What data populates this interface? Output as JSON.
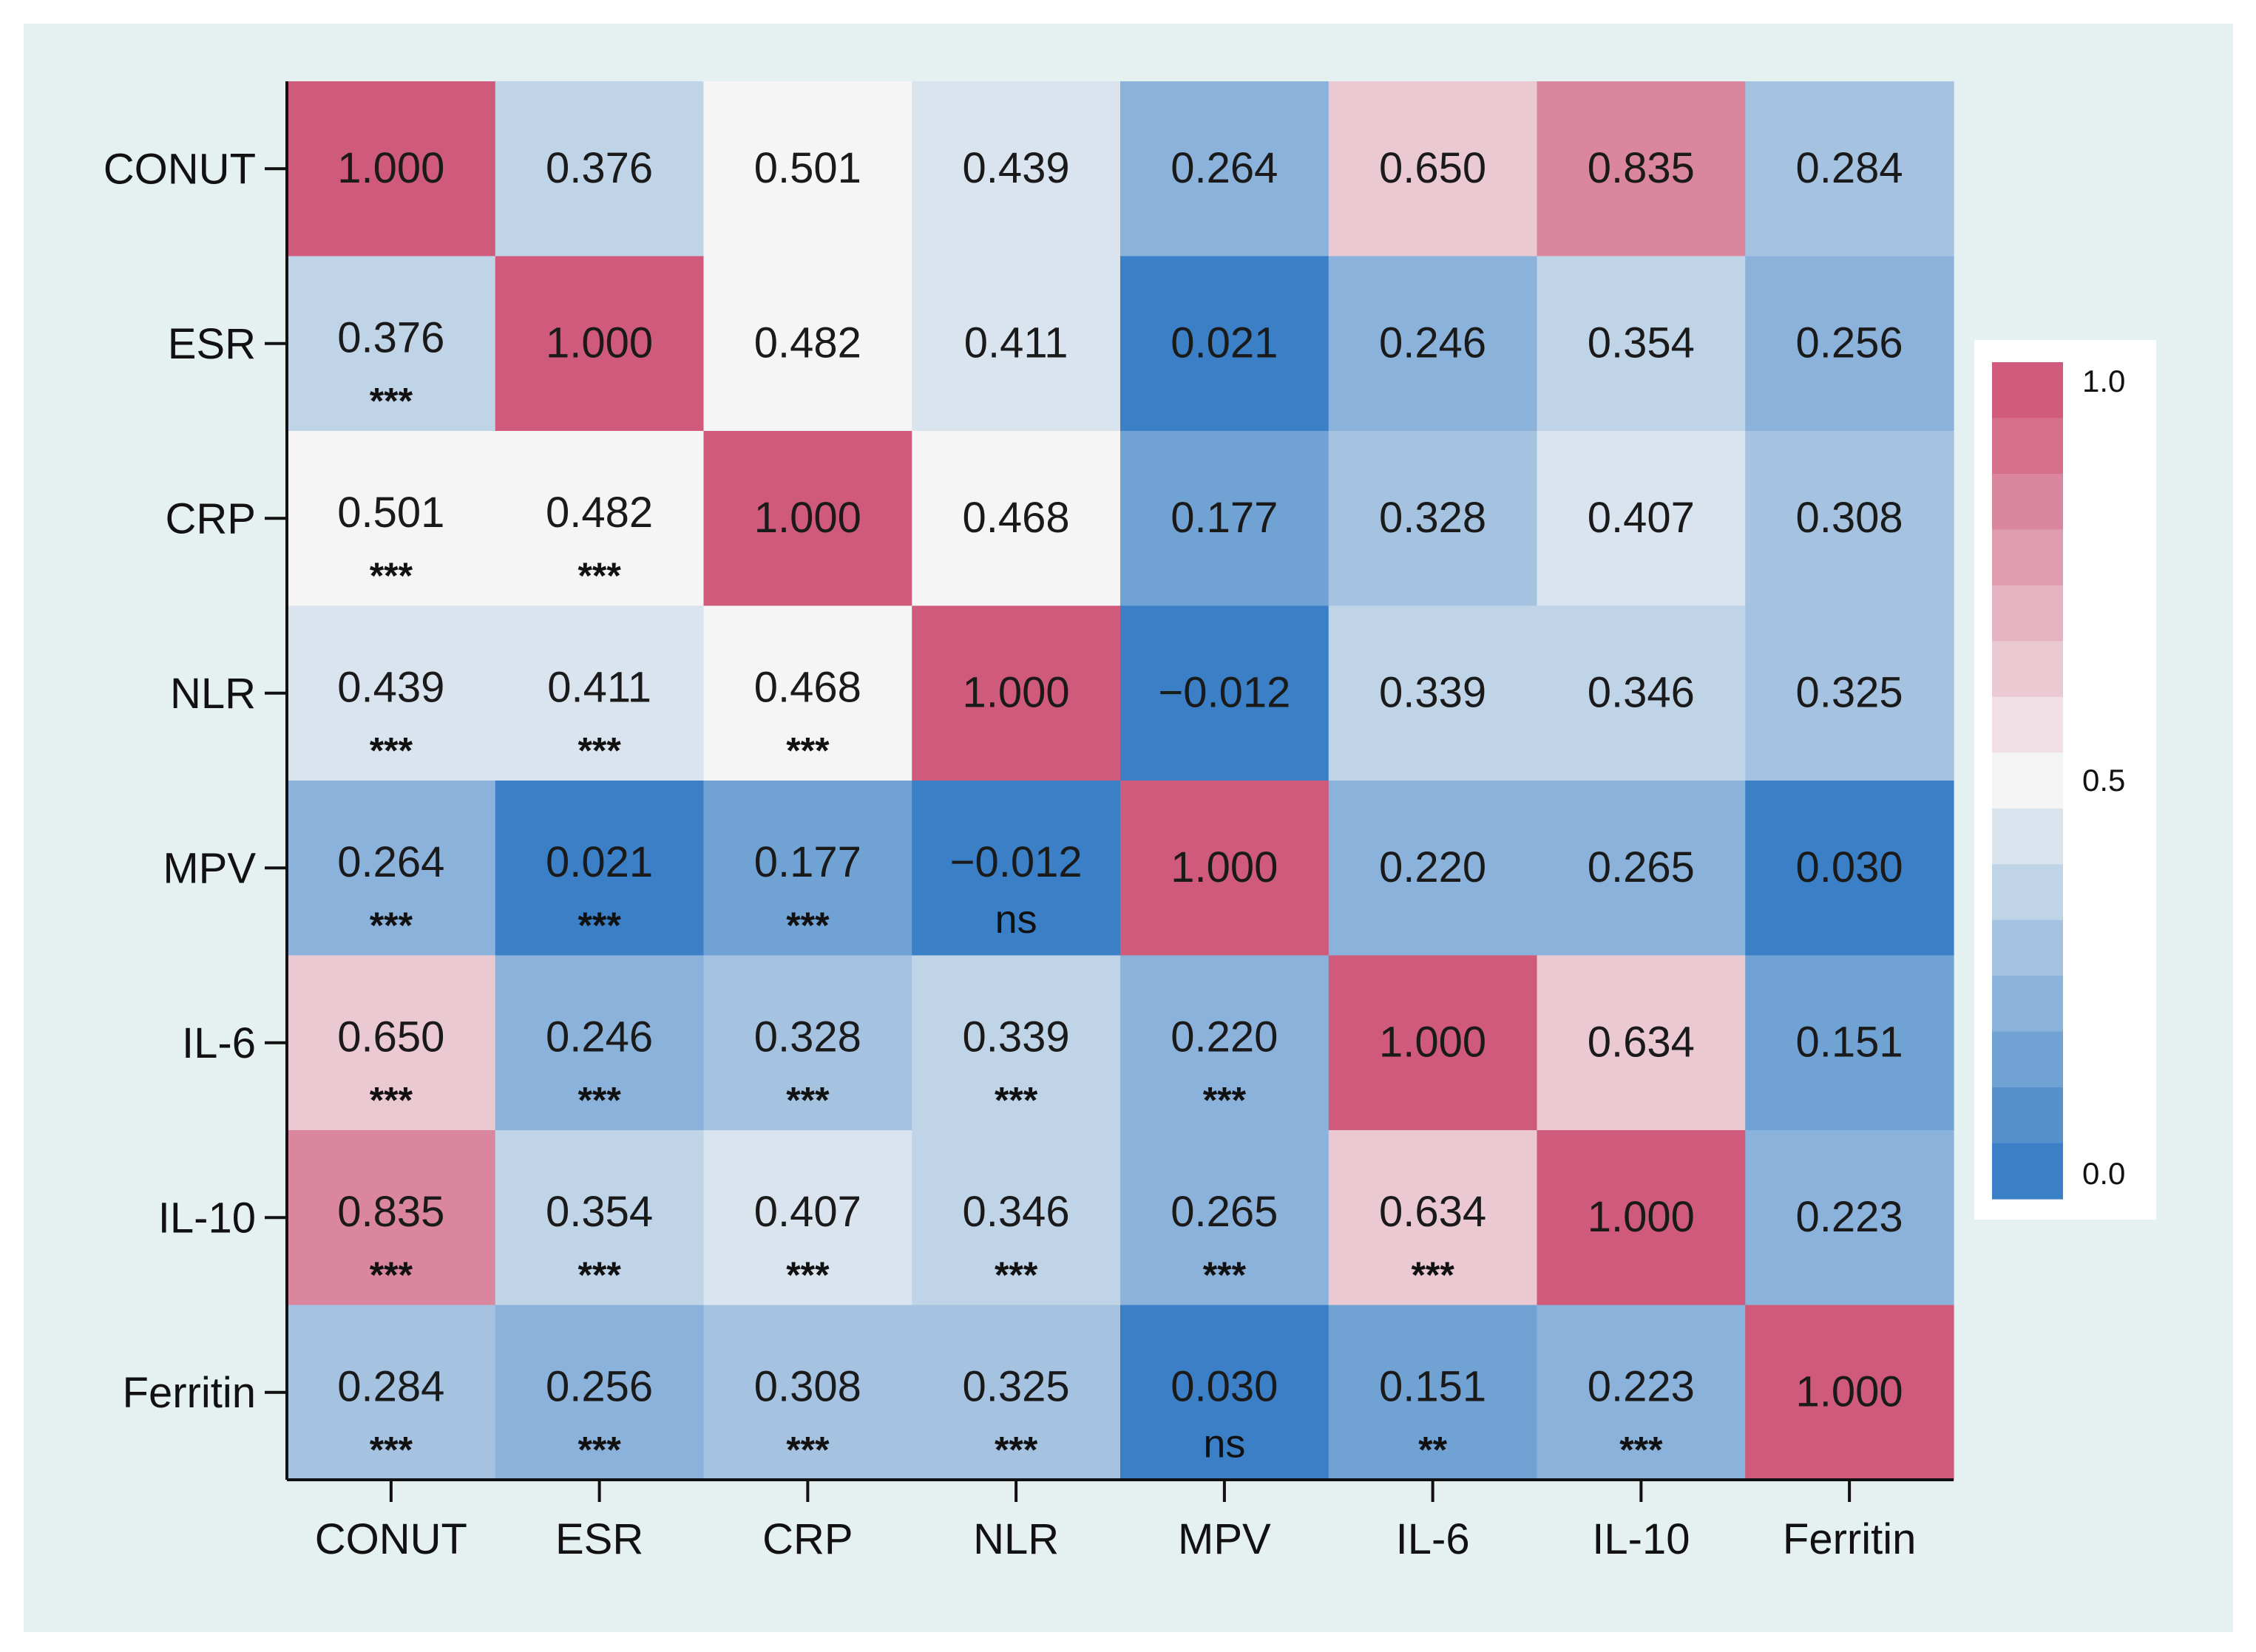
{
  "chart_data": {
    "type": "heatmap",
    "title": "",
    "variables": [
      "CONUT",
      "ESR",
      "CRP",
      "NLR",
      "MPV",
      "IL-6",
      "IL-10",
      "Ferritin"
    ],
    "matrix": [
      [
        "1.000",
        "0.376",
        "0.501",
        "0.439",
        "0.264",
        "0.650",
        "0.835",
        "0.284"
      ],
      [
        "0.376",
        "1.000",
        "0.482",
        "0.411",
        "0.021",
        "0.246",
        "0.354",
        "0.256"
      ],
      [
        "0.501",
        "0.482",
        "1.000",
        "0.468",
        "0.177",
        "0.328",
        "0.407",
        "0.308"
      ],
      [
        "0.439",
        "0.411",
        "0.468",
        "1.000",
        "−0.012",
        "0.339",
        "0.346",
        "0.325"
      ],
      [
        "0.264",
        "0.021",
        "0.177",
        "−0.012",
        "1.000",
        "0.220",
        "0.265",
        "0.030"
      ],
      [
        "0.650",
        "0.246",
        "0.328",
        "0.339",
        "0.220",
        "1.000",
        "0.634",
        "0.151"
      ],
      [
        "0.835",
        "0.354",
        "0.407",
        "0.346",
        "0.265",
        "0.634",
        "1.000",
        "0.223"
      ],
      [
        "0.284",
        "0.256",
        "0.308",
        "0.325",
        "0.030",
        "0.151",
        "0.223",
        "1.000"
      ]
    ],
    "significance": [
      [
        "",
        "",
        "",
        "",
        "",
        "",
        "",
        ""
      ],
      [
        "***",
        "",
        "",
        "",
        "",
        "",
        "",
        ""
      ],
      [
        "***",
        "***",
        "",
        "",
        "",
        "",
        "",
        ""
      ],
      [
        "***",
        "***",
        "***",
        "",
        "",
        "",
        "",
        ""
      ],
      [
        "***",
        "***",
        "***",
        "ns",
        "",
        "",
        "",
        ""
      ],
      [
        "***",
        "***",
        "***",
        "***",
        "***",
        "",
        "",
        ""
      ],
      [
        "***",
        "***",
        "***",
        "***",
        "***",
        "***",
        "",
        ""
      ],
      [
        "***",
        "***",
        "***",
        "***",
        "ns",
        "**",
        "***",
        ""
      ]
    ],
    "colorbar": {
      "range": [
        0.0,
        1.0
      ],
      "tick_labels": [
        "1.0",
        "0.5",
        "0.0"
      ],
      "tick_values": [
        1.0,
        0.5,
        0.0
      ],
      "low_color": "#2e78c4",
      "mid_color": "#f5f5f5",
      "high_color": "#cc4f72",
      "bins": 15
    },
    "background_color": "#e5f0f0"
  }
}
